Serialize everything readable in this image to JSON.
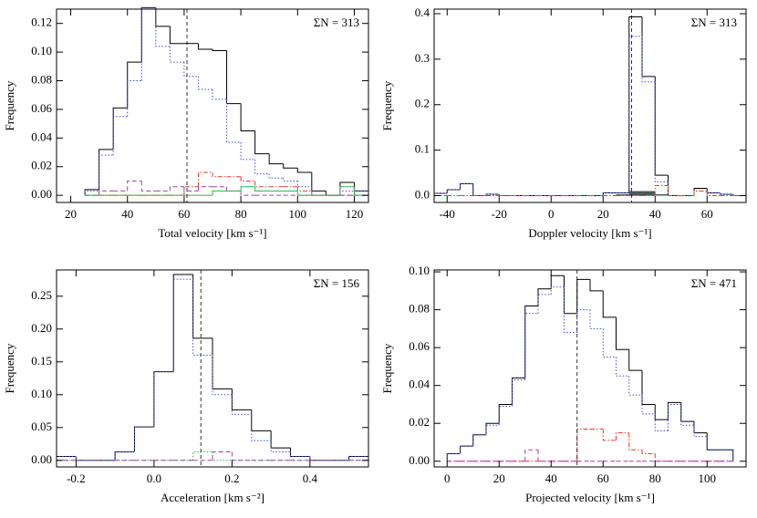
{
  "chart_data": [
    {
      "type": "histogram",
      "x_label": "Total velocity [km s⁻¹]",
      "y_label": "Frequency",
      "annotation": "ΣN = 313",
      "xlim": [
        15,
        125
      ],
      "ylim": [
        -0.005,
        0.13
      ],
      "xticks": [
        20,
        40,
        60,
        80,
        100,
        120
      ],
      "yticks": [
        {
          "value": 0,
          "label": "0.00"
        },
        {
          "value": 0.02,
          "label": "0.02"
        },
        {
          "value": 0.04,
          "label": "0.04"
        },
        {
          "value": 0.06,
          "label": "0.06"
        },
        {
          "value": 0.08,
          "label": "0.08"
        },
        {
          "value": 0.1,
          "label": "0.10"
        },
        {
          "value": 0.12,
          "label": "0.12"
        }
      ],
      "bins": [
        25,
        30,
        35,
        40,
        45,
        50,
        55,
        60,
        65,
        70,
        75,
        80,
        85,
        90,
        95,
        100,
        105,
        110,
        115,
        120,
        125
      ],
      "mean_line": 61,
      "series": [
        {
          "color": "#000000",
          "style": "solid",
          "values": [
            0.004,
            0.032,
            0.061,
            0.093,
            0.131,
            0.118,
            0.106,
            0.106,
            0.102,
            0.101,
            0.064,
            0.045,
            0.029,
            0.022,
            0.019,
            0.016,
            0.003,
            0,
            0.009,
            0.003
          ]
        },
        {
          "color": "#3b4fd8",
          "style": "dotted",
          "values": [
            0.003,
            0.028,
            0.055,
            0.08,
            0.131,
            0.104,
            0.093,
            0.083,
            0.074,
            0.067,
            0.037,
            0.025,
            0.015,
            0.012,
            0.01,
            0.006,
            0,
            0,
            0.003,
            0.003
          ]
        },
        {
          "color": "#e8392b",
          "style": "dashdot",
          "values": [
            0,
            0,
            0,
            0,
            0,
            0,
            0,
            0.006,
            0.016,
            0.013,
            0.013,
            0.01,
            0.006,
            0.006,
            0.006,
            0.003,
            0,
            0,
            0,
            0
          ]
        },
        {
          "color": "#a13fb5",
          "style": "dashed",
          "values": [
            0,
            0.003,
            0.003,
            0.01,
            0.003,
            0.003,
            0.006,
            0.003,
            0.006,
            0.006,
            0.003,
            0,
            0,
            0,
            0,
            0,
            0,
            0,
            0,
            0
          ]
        },
        {
          "color": "#2bb34a",
          "style": "solid",
          "values": [
            0,
            0,
            0,
            0,
            0,
            0,
            0,
            0,
            0,
            0.003,
            0.003,
            0.006,
            0.003,
            0.003,
            0.003,
            0,
            0,
            0,
            0.006,
            0
          ]
        }
      ]
    },
    {
      "type": "histogram",
      "x_label": "Doppler velocity [km s⁻¹]",
      "y_label": "Frequency",
      "annotation": "ΣN = 313",
      "xlim": [
        -45,
        75
      ],
      "ylim": [
        -0.015,
        0.41
      ],
      "xticks": [
        -40,
        -20,
        0,
        20,
        40,
        60
      ],
      "yticks": [
        {
          "value": 0,
          "label": "0.0"
        },
        0.1,
        0.2,
        0.3,
        0.4
      ],
      "bins": [
        -45,
        -40,
        -35,
        -30,
        -25,
        -20,
        -15,
        -10,
        -5,
        0,
        5,
        10,
        15,
        20,
        25,
        30,
        35,
        40,
        45,
        50,
        55,
        60,
        65,
        70,
        75
      ],
      "mean_line": 31,
      "series": [
        {
          "color": "#555555",
          "style": "filled",
          "values": [
            0,
            0,
            0,
            0,
            0,
            0,
            0,
            0,
            0,
            0,
            0,
            0,
            0,
            0,
            0.003,
            0.01,
            0.01,
            0.003,
            0,
            0,
            0,
            0,
            0,
            0
          ]
        },
        {
          "color": "#000000",
          "style": "solid",
          "values": [
            0.005,
            0.013,
            0.026,
            0,
            0.003,
            0,
            0,
            0,
            0,
            0,
            0,
            0,
            0,
            0.006,
            0.006,
            0.393,
            0.262,
            0.045,
            0,
            0,
            0.016,
            0.006,
            0.003,
            0
          ]
        },
        {
          "color": "#3b4fd8",
          "style": "dotted",
          "values": [
            0.005,
            0.013,
            0.026,
            0,
            0.003,
            0,
            0,
            0,
            0,
            0,
            0,
            0,
            0,
            0.006,
            0.006,
            0.35,
            0.25,
            0.03,
            0,
            0,
            0.01,
            0.006,
            0.003,
            0
          ]
        },
        {
          "color": "#e8392b",
          "style": "dashdot",
          "values": [
            0,
            0,
            0,
            0,
            0,
            0,
            0,
            0,
            0,
            0,
            0,
            0,
            0,
            0,
            0,
            0,
            0,
            0.022,
            0,
            0,
            0.01,
            0,
            0,
            0
          ]
        }
      ]
    },
    {
      "type": "histogram",
      "x_label": "Acceleration [km s⁻²]",
      "y_label": "Frequency",
      "annotation": "ΣN = 156",
      "xlim": [
        -0.25,
        0.55
      ],
      "ylim": [
        -0.01,
        0.29
      ],
      "xticks": [
        {
          "value": -0.2,
          "label": "-0.2"
        },
        {
          "value": 0,
          "label": "0.0"
        },
        {
          "value": 0.2,
          "label": "0.2"
        },
        {
          "value": 0.4,
          "label": "0.4"
        }
      ],
      "yticks": [
        {
          "value": 0,
          "label": "0.00"
        },
        {
          "value": 0.05,
          "label": "0.05"
        },
        {
          "value": 0.1,
          "label": "0.10"
        },
        {
          "value": 0.15,
          "label": "0.15"
        },
        {
          "value": 0.2,
          "label": "0.20"
        },
        {
          "value": 0.25,
          "label": "0.25"
        }
      ],
      "bins": [
        -0.25,
        -0.2,
        -0.15,
        -0.1,
        -0.05,
        0,
        0.05,
        0.1,
        0.15,
        0.2,
        0.25,
        0.3,
        0.35,
        0.4,
        0.45,
        0.5,
        0.55
      ],
      "mean_line": 0.12,
      "series": [
        {
          "color": "#000000",
          "style": "solid",
          "values": [
            0.006,
            0,
            0,
            0.013,
            0.051,
            0.135,
            0.283,
            0.186,
            0.109,
            0.077,
            0.045,
            0.019,
            0.006,
            0,
            0,
            0.006
          ]
        },
        {
          "color": "#3b4fd8",
          "style": "dotted",
          "values": [
            0.006,
            0,
            0,
            0.013,
            0.051,
            0.135,
            0.276,
            0.16,
            0.1,
            0.07,
            0.03,
            0.013,
            0.006,
            0,
            0,
            0.006
          ]
        },
        {
          "color": "#2bb34a",
          "style": "dotted",
          "values": [
            0,
            0,
            0,
            0,
            0,
            0,
            0,
            0.013,
            0,
            0,
            0,
            0,
            0,
            0,
            0,
            0
          ]
        },
        {
          "color": "#a13fb5",
          "style": "dashed",
          "values": [
            0,
            0,
            0,
            0,
            0,
            0,
            0,
            0,
            0.013,
            0,
            0,
            0,
            0,
            0,
            0,
            0
          ]
        }
      ]
    },
    {
      "type": "histogram",
      "x_label": "Projected velocity [km s⁻¹]",
      "y_label": "Frequency",
      "annotation": "ΣN = 471",
      "xlim": [
        -5,
        115
      ],
      "ylim": [
        -0.003,
        0.101
      ],
      "xticks": [
        0,
        20,
        40,
        60,
        80,
        100
      ],
      "yticks": [
        {
          "value": 0,
          "label": "0.00"
        },
        {
          "value": 0.02,
          "label": "0.02"
        },
        {
          "value": 0.04,
          "label": "0.04"
        },
        {
          "value": 0.06,
          "label": "0.06"
        },
        {
          "value": 0.08,
          "label": "0.08"
        },
        {
          "value": 0.1,
          "label": "0.10"
        }
      ],
      "bins": [
        0,
        5,
        10,
        15,
        20,
        25,
        30,
        35,
        40,
        45,
        50,
        55,
        60,
        65,
        70,
        75,
        80,
        85,
        90,
        95,
        100,
        105,
        110
      ],
      "mean_line": 50,
      "series": [
        {
          "color": "#000000",
          "style": "solid",
          "values": [
            0.004,
            0.008,
            0.014,
            0.02,
            0.03,
            0.044,
            0.082,
            0.091,
            0.098,
            0.078,
            0.096,
            0.09,
            0.076,
            0.059,
            0.048,
            0.03,
            0.022,
            0.031,
            0.021,
            0.015,
            0.006,
            0.006
          ]
        },
        {
          "color": "#3b4fd8",
          "style": "dotted",
          "values": [
            0.004,
            0.008,
            0.014,
            0.019,
            0.029,
            0.043,
            0.078,
            0.088,
            0.092,
            0.068,
            0.08,
            0.07,
            0.055,
            0.045,
            0.035,
            0.025,
            0.016,
            0.03,
            0.019,
            0.013,
            0.006,
            0.006
          ]
        },
        {
          "color": "#e8392b",
          "style": "dashdot",
          "values": [
            0,
            0,
            0,
            0,
            0,
            0,
            0,
            0,
            0,
            0,
            0.017,
            0.017,
            0.011,
            0.015,
            0.006,
            0.004,
            0,
            0,
            0,
            0,
            0,
            0
          ]
        },
        {
          "color": "#a13fb5",
          "style": "dashed",
          "values": [
            0,
            0,
            0,
            0,
            0,
            0,
            0.006,
            0,
            0,
            0,
            0,
            0,
            0,
            0,
            0,
            0,
            0,
            0,
            0,
            0,
            0,
            0
          ]
        }
      ]
    }
  ]
}
